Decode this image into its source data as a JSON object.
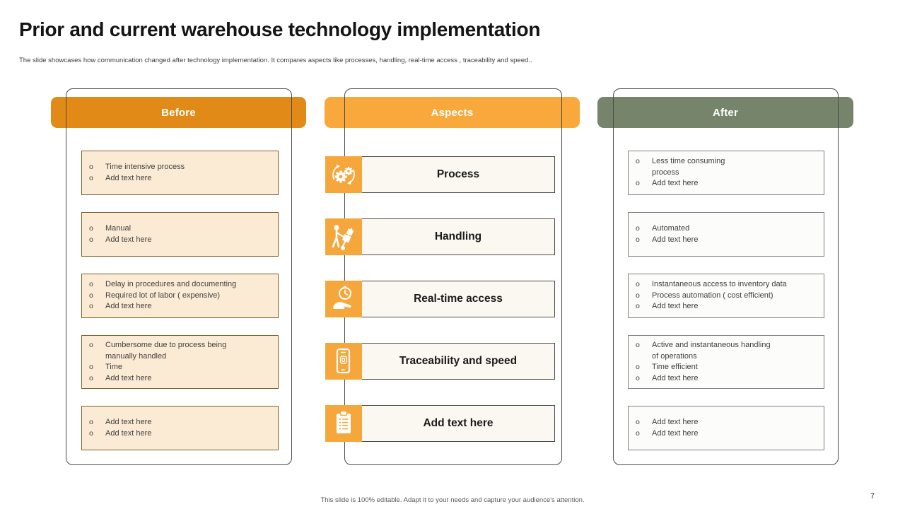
{
  "slide": {
    "title": "Prior and current warehouse technology implementation",
    "subtitle": "The slide showcases how communication changed after technology implementation.  It compares aspects like processes, handling, real-time access , traceability and speed..",
    "footer": "This slide is 100% editable.  Adapt it to your needs and capture your audience's attention.",
    "page_number": "7"
  },
  "colors": {
    "before_header": "#E18A17",
    "aspects_header": "#F9A93C",
    "after_header": "#75846B",
    "before_box_fill": "#FCEBD4",
    "before_box_border": "#7E5C28",
    "after_box_fill": "#FCFCFA",
    "after_box_border": "#808080",
    "icon_bg": "#F6A73B"
  },
  "columns": {
    "before": {
      "header": "Before",
      "boxes": [
        {
          "items": [
            "Time intensive process",
            "Add text here"
          ]
        },
        {
          "items": [
            "Manual",
            "Add text here"
          ]
        },
        {
          "items": [
            "Delay in procedures and documenting",
            "Required lot of labor ( expensive)",
            "Add text here"
          ]
        },
        {
          "items": [
            "Cumbersome due to process being\nmanually handled",
            "Time",
            "Add text here"
          ]
        },
        {
          "items": [
            "Add text here",
            "Add text here"
          ]
        }
      ]
    },
    "aspects": {
      "header": "Aspects",
      "rows": [
        {
          "label": "Process",
          "icon": "process-gears-icon"
        },
        {
          "label": "Handling",
          "icon": "handling-trolley-icon"
        },
        {
          "label": "Real-time access",
          "icon": "realtime-clock-hand-icon"
        },
        {
          "label": "Traceability and speed",
          "icon": "phone-tracking-icon"
        },
        {
          "label": "Add text here",
          "icon": "clipboard-checklist-icon"
        }
      ]
    },
    "after": {
      "header": "After",
      "boxes": [
        {
          "items": [
            "Less time consuming\nprocess",
            "Add text here"
          ]
        },
        {
          "items": [
            "Automated",
            "Add text here"
          ]
        },
        {
          "items": [
            "Instantaneous access to inventory data",
            "Process automation ( cost efficient)",
            "Add text here"
          ]
        },
        {
          "items": [
            "Active and instantaneous handling\nof operations",
            "Time efficient",
            "Add text here"
          ]
        },
        {
          "items": [
            "Add text here",
            "Add text here"
          ]
        }
      ]
    }
  }
}
